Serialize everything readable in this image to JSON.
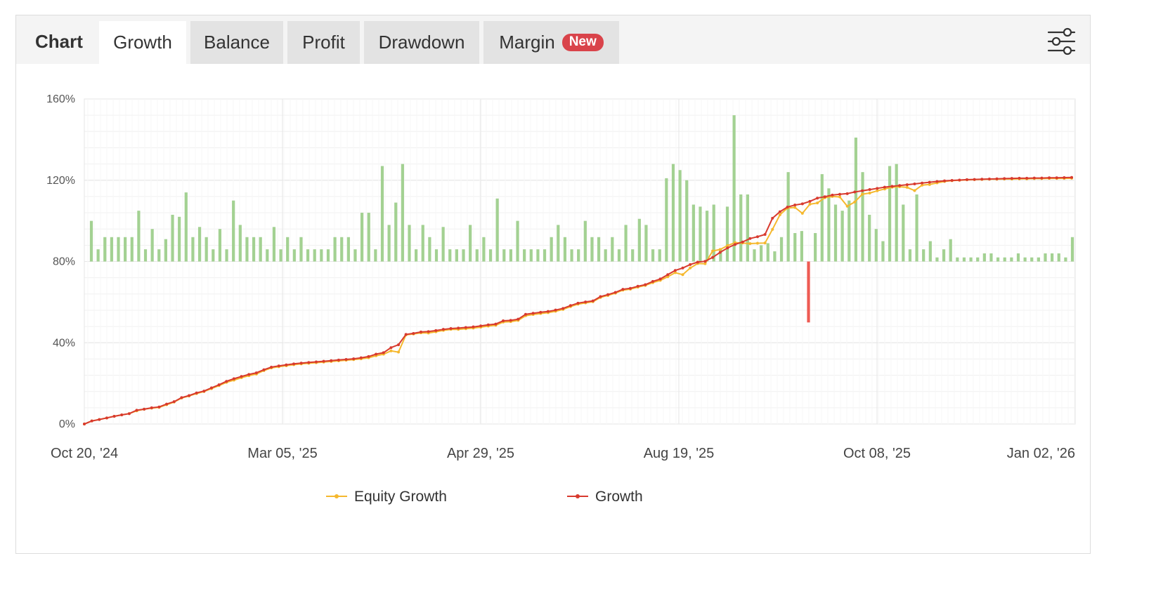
{
  "tabs": {
    "title": "Chart",
    "items": [
      {
        "label": "Growth",
        "active": true
      },
      {
        "label": "Balance",
        "active": false
      },
      {
        "label": "Profit",
        "active": false
      },
      {
        "label": "Drawdown",
        "active": false
      },
      {
        "label": "Margin",
        "active": false,
        "badge": "New"
      }
    ],
    "settings_icon": "sliders-icon"
  },
  "colors": {
    "growth": "#d83a2e",
    "equity": "#f5b82e",
    "bar_positive": "#a3d192",
    "bar_negative": "#ee5b53",
    "grid": "#e6e6e6"
  },
  "chart_data": {
    "type": "line",
    "x_tick_labels": [
      "Oct 20, '24",
      "Mar 05, '25",
      "Apr 29, '25",
      "Aug 19, '25",
      "Oct 08, '25",
      "Jan 02, '26"
    ],
    "y_tick_labels": [
      "0%",
      "40%",
      "80%",
      "120%",
      "160%"
    ],
    "ylim": [
      0,
      160
    ],
    "bar_baseline": 80,
    "grid": true,
    "legend_position": "bottom-center",
    "series": [
      {
        "name": "Equity Growth",
        "values": [
          0,
          1.5,
          2.2,
          3.0,
          3.8,
          4.5,
          5.1,
          6.5,
          7.3,
          7.8,
          8.2,
          9.5,
          10.8,
          12.8,
          13.8,
          15.0,
          16.0,
          17.4,
          18.9,
          20.5,
          21.6,
          22.8,
          23.8,
          24.6,
          26.3,
          27.6,
          28.2,
          28.7,
          29.2,
          29.6,
          29.9,
          30.2,
          30.5,
          30.8,
          31.1,
          31.4,
          31.7,
          32.1,
          32.6,
          33.6,
          34.4,
          36.0,
          35.4,
          43.9,
          44.3,
          44.9,
          44.8,
          45.4,
          46.1,
          46.6,
          46.6,
          46.9,
          47.2,
          47.7,
          48.2,
          48.6,
          50.2,
          50.4,
          51.0,
          53.3,
          53.9,
          54.4,
          54.8,
          55.5,
          56.4,
          57.8,
          59.0,
          59.6,
          60.2,
          62.3,
          63.3,
          64.4,
          65.9,
          66.4,
          67.4,
          68.2,
          69.6,
          70.7,
          72.5,
          74.5,
          73.5,
          76.8,
          79.0,
          78.9,
          85.2,
          85.9,
          87.8,
          89.3,
          89.1,
          88.8,
          89.0,
          89.1,
          95.8,
          103.0,
          106.3,
          106.6,
          103.7,
          108.2,
          108.8,
          111.4,
          112.0,
          111.8,
          107.2,
          109.3,
          113.1,
          113.7,
          114.8,
          115.7,
          116.6,
          116.8,
          116.5,
          114.9,
          117.6,
          117.9,
          118.7,
          119.4,
          119.8,
          120.0,
          120.2,
          120.3,
          120.4,
          120.5,
          120.5,
          120.6,
          120.6,
          120.7,
          120.7,
          120.8,
          120.8,
          120.9,
          120.9,
          120.9,
          121.0
        ],
        "color": "#f5b82e"
      },
      {
        "name": "Growth",
        "values": [
          0,
          1.5,
          2.2,
          3.0,
          3.8,
          4.5,
          5.1,
          6.8,
          7.3,
          8.0,
          8.4,
          9.8,
          11.0,
          13.0,
          14.0,
          15.3,
          16.2,
          17.8,
          19.3,
          21.0,
          22.3,
          23.4,
          24.4,
          25.2,
          26.7,
          28.0,
          28.6,
          29.1,
          29.6,
          30.0,
          30.3,
          30.6,
          30.9,
          31.2,
          31.5,
          31.8,
          32.1,
          32.6,
          33.2,
          34.4,
          35.1,
          37.6,
          39.0,
          44.1,
          44.6,
          45.3,
          45.5,
          46.0,
          46.6,
          47.0,
          47.2,
          47.5,
          47.8,
          48.3,
          48.8,
          49.2,
          50.8,
          51.0,
          51.6,
          54.0,
          54.5,
          55.0,
          55.4,
          56.1,
          56.9,
          58.3,
          59.5,
          60.1,
          60.6,
          62.7,
          63.7,
          64.8,
          66.3,
          66.8,
          67.8,
          68.6,
          70.2,
          71.4,
          73.5,
          75.6,
          76.8,
          78.5,
          79.7,
          80.1,
          82.0,
          84.5,
          86.7,
          88.4,
          89.6,
          91.3,
          92.2,
          93.3,
          101.3,
          104.5,
          106.8,
          107.8,
          108.4,
          109.6,
          111.2,
          111.9,
          112.7,
          113.1,
          113.4,
          114.2,
          114.8,
          115.4,
          116.0,
          116.6,
          117.0,
          117.4,
          117.8,
          118.2,
          118.6,
          119.0,
          119.4,
          119.7,
          119.9,
          120.1,
          120.3,
          120.4,
          120.5,
          120.6,
          120.7,
          120.8,
          120.9,
          121.0,
          121.0,
          121.1,
          121.1,
          121.2,
          121.2,
          121.3,
          121.4
        ],
        "color": "#d83a2e"
      }
    ],
    "bar_values": [
      100,
      86,
      92,
      92,
      92,
      92,
      92,
      105,
      86,
      96,
      86,
      91,
      103,
      102,
      114,
      92,
      97,
      92,
      86,
      96,
      86,
      110,
      98,
      92,
      92,
      92,
      86,
      97,
      86,
      92,
      86,
      92,
      86,
      86,
      86,
      86,
      92,
      92,
      92,
      86,
      104,
      104,
      86,
      127,
      98,
      109,
      128,
      98,
      86,
      98,
      92,
      86,
      97,
      86,
      86,
      86,
      98,
      86,
      92,
      86,
      111,
      86,
      86,
      100,
      86,
      86,
      86,
      86,
      92,
      98,
      92,
      86,
      86,
      100,
      92,
      92,
      86,
      92,
      86,
      98,
      86,
      101,
      98,
      86,
      86,
      121,
      128,
      125,
      120,
      108,
      107,
      105,
      108,
      86,
      107,
      152,
      113,
      113,
      86,
      88,
      89,
      85,
      92,
      124,
      94,
      95,
      50,
      94,
      123,
      116,
      108,
      105,
      110,
      141,
      124,
      103,
      96,
      90,
      127,
      128,
      108,
      86,
      113,
      86,
      90,
      82,
      86,
      91,
      82,
      82,
      82,
      82,
      84,
      84,
      82,
      82,
      82,
      84,
      82,
      82,
      82,
      84,
      84,
      84,
      82,
      92
    ]
  },
  "legend": {
    "equity_label": "Equity Growth",
    "growth_label": "Growth"
  }
}
